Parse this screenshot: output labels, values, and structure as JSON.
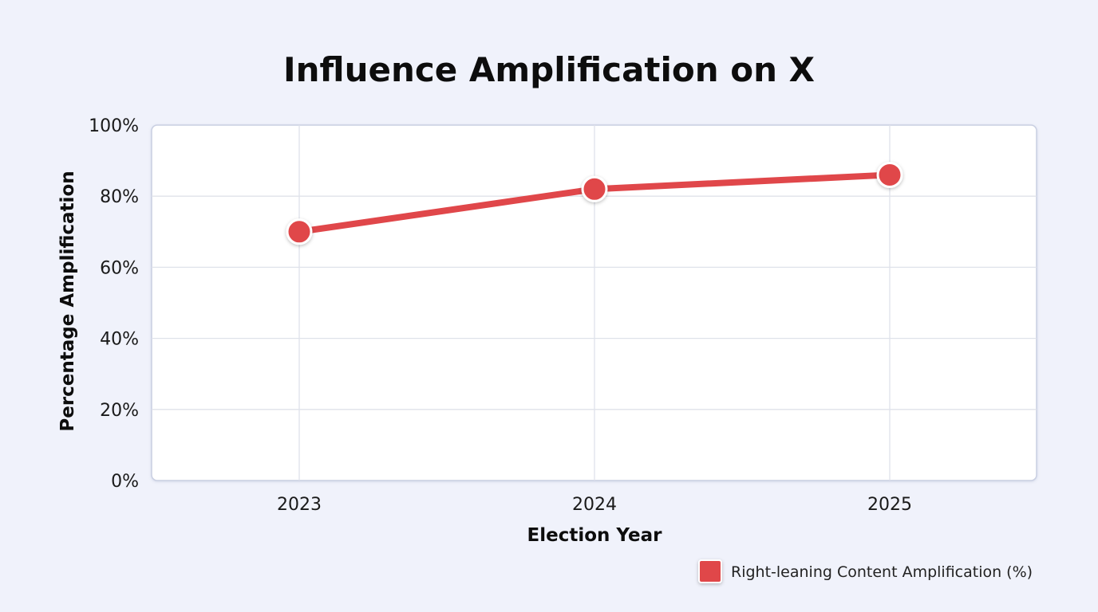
{
  "chart_data": {
    "type": "line",
    "title": "Influence Amplification on X",
    "xlabel": "Election Year",
    "ylabel": "Percentage Amplification",
    "categories": [
      "2023",
      "2024",
      "2025"
    ],
    "series": [
      {
        "name": "Right-leaning Content Amplification (%)",
        "values": [
          70,
          82,
          86
        ],
        "color": "#e0474a"
      }
    ],
    "ylim": [
      0,
      100
    ],
    "yticks": [
      0,
      20,
      40,
      60,
      80,
      100
    ],
    "ytick_labels": [
      "0%",
      "20%",
      "40%",
      "60%",
      "80%",
      "100%"
    ],
    "grid": true,
    "legend_position": "bottom-right"
  }
}
